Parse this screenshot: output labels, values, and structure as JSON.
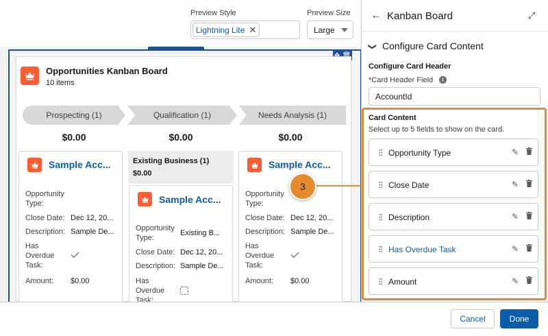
{
  "preview": {
    "style_label": "Preview Style",
    "style_value": "Lightning Lite",
    "size_label": "Preview Size",
    "size_value": "Large"
  },
  "board": {
    "title": "Opportunities Kanban Board",
    "count": "10 items",
    "stages": [
      {
        "label": "Prospecting (1)",
        "total": "$0.00"
      },
      {
        "label": "Qualification (1)",
        "total": "$0.00"
      },
      {
        "label": "Needs Analysis (1)",
        "total": "$0.00"
      }
    ],
    "group": {
      "title": "Existing Business (1)",
      "amount": "$0.00"
    },
    "cards": [
      {
        "title": "Sample Acc...",
        "type_label": "Opportunity Type:",
        "type_value": "",
        "close_label": "Close Date:",
        "close_value": "Dec 12, 20...",
        "desc_label": "Description:",
        "desc_value": "Sample De...",
        "overdue_label": "Has Overdue Task:",
        "amount_label": "Amount:",
        "amount_value": "$0.00"
      },
      {
        "title": "Sample Acc...",
        "type_label": "Opportunity Type:",
        "type_value": "Existing B...",
        "close_label": "Close Date:",
        "close_value": "Dec 12, 20...",
        "desc_label": "Description:",
        "desc_value": "Sample De...",
        "overdue_label": "Has Overdue Task:"
      },
      {
        "title": "Sample Acc...",
        "type_label": "Opportunity Type:",
        "type_value": "",
        "close_label": "Close Date:",
        "close_value": "Dec 12, 20...",
        "desc_label": "Description:",
        "desc_value": "Sample De...",
        "overdue_label": "Has Overdue Task:",
        "amount_label": "Amount:",
        "amount_value": "$0.00"
      }
    ]
  },
  "panel": {
    "title": "Kanban Board",
    "section": "Configure Card Content",
    "header_section": "Configure Card Header",
    "header_field_label": "Card Header Field",
    "header_field_value": "AccountId",
    "content_title": "Card Content",
    "content_subtitle": "Select up to 5 fields to show on the card.",
    "fields": [
      {
        "label": "Opportunity Type"
      },
      {
        "label": "Close Date"
      },
      {
        "label": "Description"
      },
      {
        "label": "Has Overdue Task"
      },
      {
        "label": "Amount"
      }
    ]
  },
  "callout": "3",
  "footer": {
    "cancel": "Cancel",
    "done": "Done"
  },
  "colors": {
    "accent": "#0b5cab",
    "callout": "#e68a2e",
    "opportunity_icon": "#fe5c31"
  }
}
